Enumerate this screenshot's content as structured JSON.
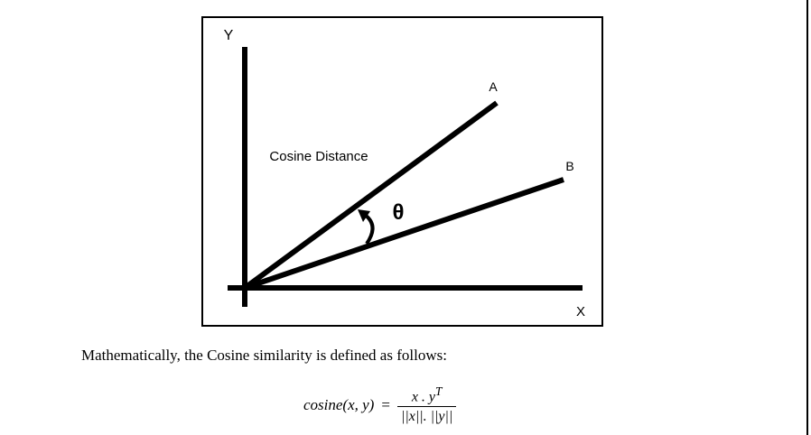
{
  "diagram": {
    "y_axis_label": "Y",
    "x_axis_label": "X",
    "vector_a_label": "A",
    "vector_b_label": "B",
    "distance_label": "Cosine Distance",
    "angle_label": "θ"
  },
  "caption": "Mathematically, the Cosine similarity is defined as follows:",
  "formula": {
    "lhs": "cosine(x, y)",
    "equals": "=",
    "numerator_base": "x . y",
    "numerator_sup": "T",
    "denominator": "||x||. ||y||"
  },
  "colors": {
    "line": "#000000",
    "background": "#ffffff"
  }
}
